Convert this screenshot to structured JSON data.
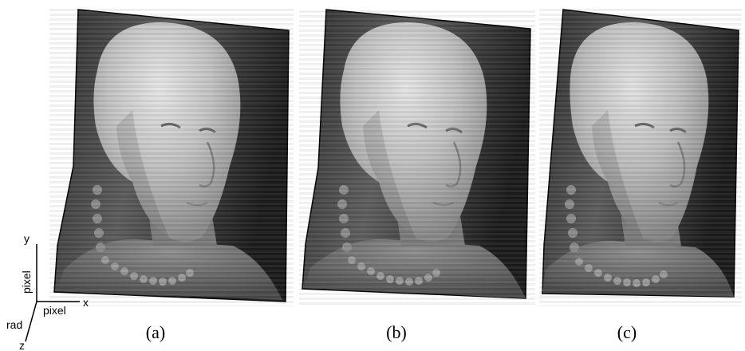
{
  "panels": [
    {
      "id": "a",
      "caption": "(a)"
    },
    {
      "id": "b",
      "caption": "(b)"
    },
    {
      "id": "c",
      "caption": "(c)"
    }
  ],
  "axes": {
    "y_label": "y",
    "y_unit": "pixel",
    "x_label": "x",
    "x_unit": "pixel",
    "z_label": "z",
    "z_unit": "rad"
  },
  "colors": {
    "background": "#ffffff",
    "surface_dark": "#2a2a2a",
    "surface_mid": "#6a6a6a",
    "face_light": "#d8d8d8",
    "face_mid": "#a8a8a8",
    "outline": "#000000"
  }
}
